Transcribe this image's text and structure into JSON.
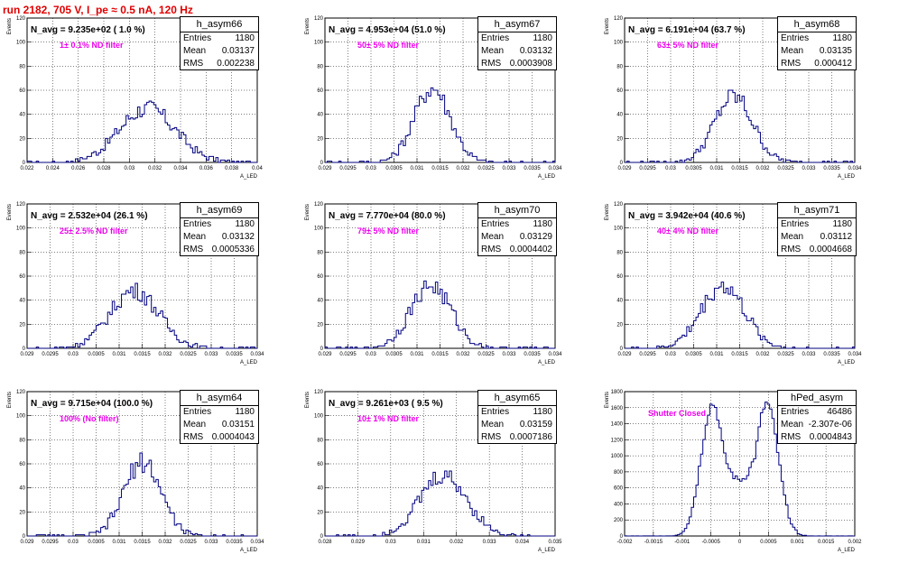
{
  "run_title": "run 2182,   705 V, I_pe ≈ 0.5 nA, 120 Hz",
  "chart_data": [
    {
      "type": "histogram",
      "name": "h_asym66",
      "title": "N_avg = 9.235e+02 ( 1.0 %)",
      "note": "1± 0.1% ND filter",
      "entries": "1180",
      "mean": "0.03137",
      "rms": "0.002238",
      "xlim": [
        0.022,
        0.04
      ],
      "ylim": [
        0,
        120
      ],
      "xticks": [
        0.022,
        0.024,
        0.026,
        0.028,
        0.03,
        0.032,
        0.034,
        0.036,
        0.038,
        0.04
      ],
      "xtick_labels": [
        "0.022",
        "0.024",
        "0.026",
        "0.028",
        "0.03",
        "0.032",
        "0.034",
        "0.036",
        "0.038",
        "0.04"
      ],
      "yticks": [
        0,
        20,
        40,
        60,
        80,
        100,
        120
      ],
      "ytick_labels": [
        "0",
        "20",
        "40",
        "60",
        "80",
        "100",
        "120"
      ],
      "xlabel": "A_LED",
      "ylabel": "Events",
      "gauss": {
        "mu": 0.0314,
        "sigma": 0.0022,
        "peak": 45
      }
    },
    {
      "type": "histogram",
      "name": "h_asym67",
      "title": "N_avg = 4.953e+04 (51.0 %)",
      "note": "50± 5% ND filter",
      "entries": "1180",
      "mean": "0.03132",
      "rms": "0.0003908",
      "xlim": [
        0.029,
        0.034
      ],
      "ylim": [
        0,
        120
      ],
      "xticks": [
        0.029,
        0.0295,
        0.03,
        0.0305,
        0.031,
        0.0315,
        0.032,
        0.0325,
        0.033,
        0.0335,
        0.034
      ],
      "xtick_labels": [
        "0.029",
        "0.0295",
        "0.03",
        "0.0305",
        "0.031",
        "0.0315",
        "0.032",
        "0.0325",
        "0.033",
        "0.0335",
        "0.034"
      ],
      "yticks": [
        0,
        20,
        40,
        60,
        80,
        100,
        120
      ],
      "ytick_labels": [
        "0",
        "20",
        "40",
        "60",
        "80",
        "100",
        "120"
      ],
      "xlabel": "A_LED",
      "ylabel": "Events",
      "gauss": {
        "mu": 0.03133,
        "sigma": 0.00039,
        "peak": 62
      }
    },
    {
      "type": "histogram",
      "name": "h_asym68",
      "title": "N_avg = 6.191e+04 (63.7 %)",
      "note": "63± 5% ND filter",
      "entries": "1180",
      "mean": "0.03135",
      "rms": "0.000412",
      "xlim": [
        0.029,
        0.034
      ],
      "ylim": [
        0,
        120
      ],
      "xticks": [
        0.029,
        0.0295,
        0.03,
        0.0305,
        0.031,
        0.0315,
        0.032,
        0.0325,
        0.033,
        0.0335,
        0.034
      ],
      "xtick_labels": [
        "0.029",
        "0.0295",
        "0.03",
        "0.0305",
        "0.031",
        "0.0315",
        "0.032",
        "0.0325",
        "0.033",
        "0.0335",
        "0.034"
      ],
      "yticks": [
        0,
        20,
        40,
        60,
        80,
        100,
        120
      ],
      "ytick_labels": [
        "0",
        "20",
        "40",
        "60",
        "80",
        "100",
        "120"
      ],
      "xlabel": "A_LED",
      "ylabel": "Events",
      "gauss": {
        "mu": 0.03137,
        "sigma": 0.00041,
        "peak": 55
      }
    },
    {
      "type": "histogram",
      "name": "h_asym69",
      "title": "N_avg = 2.532e+04 (26.1 %)",
      "note": "25± 2.5% ND filter",
      "entries": "1180",
      "mean": "0.03132",
      "rms": "0.0005336",
      "xlim": [
        0.029,
        0.034
      ],
      "ylim": [
        0,
        120
      ],
      "xticks": [
        0.029,
        0.0295,
        0.03,
        0.0305,
        0.031,
        0.0315,
        0.032,
        0.0325,
        0.033,
        0.0335,
        0.034
      ],
      "xtick_labels": [
        "0.029",
        "0.0295",
        "0.03",
        "0.0305",
        "0.031",
        "0.0315",
        "0.032",
        "0.0325",
        "0.033",
        "0.0335",
        "0.034"
      ],
      "yticks": [
        0,
        20,
        40,
        60,
        80,
        100,
        120
      ],
      "ytick_labels": [
        "0",
        "20",
        "40",
        "60",
        "80",
        "100",
        "120"
      ],
      "xlabel": "A_LED",
      "ylabel": "Events",
      "gauss": {
        "mu": 0.03133,
        "sigma": 0.00053,
        "peak": 48
      }
    },
    {
      "type": "histogram",
      "name": "h_asym70",
      "title": "N_avg = 7.770e+04 (80.0 %)",
      "note": "79± 5% ND filter",
      "entries": "1180",
      "mean": "0.03129",
      "rms": "0.0004402",
      "xlim": [
        0.029,
        0.034
      ],
      "ylim": [
        0,
        120
      ],
      "xticks": [
        0.029,
        0.0295,
        0.03,
        0.0305,
        0.031,
        0.0315,
        0.032,
        0.0325,
        0.033,
        0.0335,
        0.034
      ],
      "xtick_labels": [
        "0.029",
        "0.0295",
        "0.03",
        "0.0305",
        "0.031",
        "0.0315",
        "0.032",
        "0.0325",
        "0.033",
        "0.0335",
        "0.034"
      ],
      "yticks": [
        0,
        20,
        40,
        60,
        80,
        100,
        120
      ],
      "ytick_labels": [
        "0",
        "20",
        "40",
        "60",
        "80",
        "100",
        "120"
      ],
      "xlabel": "A_LED",
      "ylabel": "Events",
      "gauss": {
        "mu": 0.0313,
        "sigma": 0.00044,
        "peak": 52
      }
    },
    {
      "type": "histogram",
      "name": "h_asym71",
      "title": "N_avg = 3.942e+04 (40.6 %)",
      "note": "40± 4% ND filter",
      "entries": "1180",
      "mean": "0.03112",
      "rms": "0.0004668",
      "xlim": [
        0.029,
        0.034
      ],
      "ylim": [
        0,
        120
      ],
      "xticks": [
        0.029,
        0.0295,
        0.03,
        0.0305,
        0.031,
        0.0315,
        0.032,
        0.0325,
        0.033,
        0.0335,
        0.034
      ],
      "xtick_labels": [
        "0.029",
        "0.0295",
        "0.03",
        "0.0305",
        "0.031",
        "0.0315",
        "0.032",
        "0.0325",
        "0.033",
        "0.0335",
        "0.034"
      ],
      "yticks": [
        0,
        20,
        40,
        60,
        80,
        100,
        120
      ],
      "ytick_labels": [
        "0",
        "20",
        "40",
        "60",
        "80",
        "100",
        "120"
      ],
      "xlabel": "A_LED",
      "ylabel": "Events",
      "gauss": {
        "mu": 0.03113,
        "sigma": 0.00047,
        "peak": 52
      }
    },
    {
      "type": "histogram",
      "name": "h_asym64",
      "title": "N_avg = 9.715e+04 (100.0 %)",
      "note": "100% (No filter)",
      "entries": "1180",
      "mean": "0.03151",
      "rms": "0.0004043",
      "xlim": [
        0.029,
        0.034
      ],
      "ylim": [
        0,
        120
      ],
      "xticks": [
        0.029,
        0.0295,
        0.03,
        0.0305,
        0.031,
        0.0315,
        0.032,
        0.0325,
        0.033,
        0.0335,
        0.034
      ],
      "xtick_labels": [
        "0.029",
        "0.0295",
        "0.03",
        "0.0305",
        "0.031",
        "0.0315",
        "0.032",
        "0.0325",
        "0.033",
        "0.0335",
        "0.034"
      ],
      "yticks": [
        0,
        20,
        40,
        60,
        80,
        100,
        120
      ],
      "ytick_labels": [
        "0",
        "20",
        "40",
        "60",
        "80",
        "100",
        "120"
      ],
      "xlabel": "A_LED",
      "ylabel": "Events",
      "gauss": {
        "mu": 0.03151,
        "sigma": 0.0004,
        "peak": 62
      }
    },
    {
      "type": "histogram",
      "name": "h_asym65",
      "title": "N_avg = 9.261e+03 ( 9.5 %)",
      "note": "10± 1% ND filter",
      "entries": "1180",
      "mean": "0.03159",
      "rms": "0.0007186",
      "xlim": [
        0.028,
        0.035
      ],
      "ylim": [
        0,
        120
      ],
      "xticks": [
        0.028,
        0.029,
        0.03,
        0.031,
        0.032,
        0.033,
        0.034,
        0.035
      ],
      "xtick_labels": [
        "0.028",
        "0.029",
        "0.03",
        "0.031",
        "0.032",
        "0.033",
        "0.034",
        "0.035"
      ],
      "yticks": [
        0,
        20,
        40,
        60,
        80,
        100,
        120
      ],
      "ytick_labels": [
        "0",
        "20",
        "40",
        "60",
        "80",
        "100",
        "120"
      ],
      "xlabel": "A_LED",
      "ylabel": "Events",
      "gauss": {
        "mu": 0.0316,
        "sigma": 0.00072,
        "peak": 50
      }
    },
    {
      "type": "histogram",
      "name": "hPed_asym",
      "title": "",
      "note": "Shutter Closed",
      "entries": "46486",
      "mean": "-2.307e-06",
      "rms": "0.0004843",
      "xlim": [
        -0.002,
        0.002
      ],
      "ylim": [
        0,
        1800
      ],
      "xticks": [
        -0.002,
        -0.0015,
        -0.001,
        -0.0005,
        0,
        0.0005,
        0.001,
        0.0015,
        0.002
      ],
      "xtick_labels": [
        "-0.002",
        "-0.0015",
        "-0.001",
        "-0.0005",
        "0",
        "0.0005",
        "0.001",
        "0.0015",
        "0.002"
      ],
      "yticks": [
        0,
        200,
        400,
        600,
        800,
        1000,
        1200,
        1400,
        1600,
        1800
      ],
      "ytick_labels": [
        "0",
        "200",
        "400",
        "600",
        "800",
        "1000",
        "1200",
        "1400",
        "1600",
        "1800"
      ],
      "xlabel": "A_LED",
      "ylabel": "Events",
      "bimodal": {
        "mu": 0.00047,
        "sigma": 0.0002,
        "peak": 1650,
        "floor": 700
      }
    }
  ]
}
